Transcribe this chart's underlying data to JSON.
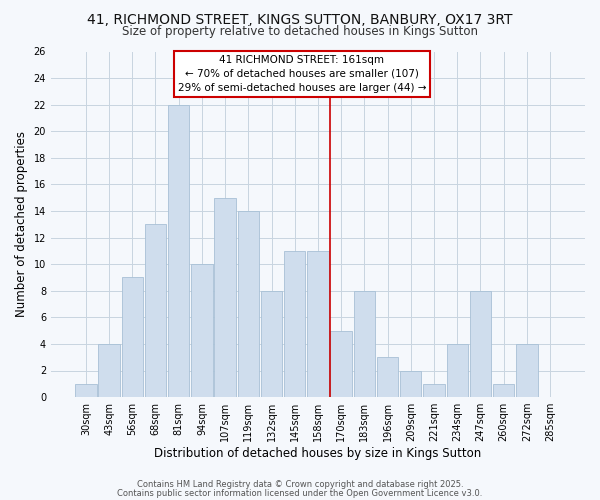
{
  "title": "41, RICHMOND STREET, KINGS SUTTON, BANBURY, OX17 3RT",
  "subtitle": "Size of property relative to detached houses in Kings Sutton",
  "xlabel": "Distribution of detached houses by size in Kings Sutton",
  "ylabel": "Number of detached properties",
  "categories": [
    "30sqm",
    "43sqm",
    "56sqm",
    "68sqm",
    "81sqm",
    "94sqm",
    "107sqm",
    "119sqm",
    "132sqm",
    "145sqm",
    "158sqm",
    "170sqm",
    "183sqm",
    "196sqm",
    "209sqm",
    "221sqm",
    "234sqm",
    "247sqm",
    "260sqm",
    "272sqm",
    "285sqm"
  ],
  "values": [
    1,
    4,
    9,
    13,
    22,
    10,
    15,
    14,
    8,
    11,
    11,
    5,
    8,
    3,
    2,
    1,
    4,
    8,
    1,
    4,
    0
  ],
  "bar_color": "#cfdded",
  "bar_edgecolor": "#a8c0d6",
  "ylim": [
    0,
    26
  ],
  "yticks": [
    0,
    2,
    4,
    6,
    8,
    10,
    12,
    14,
    16,
    18,
    20,
    22,
    24,
    26
  ],
  "vline_x_index": 10,
  "vline_color": "#cc0000",
  "annotation_title": "41 RICHMOND STREET: 161sqm",
  "annotation_line1": "← 70% of detached houses are smaller (107)",
  "annotation_line2": "29% of semi-detached houses are larger (44) →",
  "annotation_box_color": "#ffffff",
  "annotation_box_edgecolor": "#cc0000",
  "footer1": "Contains HM Land Registry data © Crown copyright and database right 2025.",
  "footer2": "Contains public sector information licensed under the Open Government Licence v3.0.",
  "background_color": "#f5f8fc",
  "title_fontsize": 10,
  "subtitle_fontsize": 8.5,
  "tick_fontsize": 7,
  "label_fontsize": 8.5,
  "footer_fontsize": 6,
  "annotation_fontsize": 7.5
}
